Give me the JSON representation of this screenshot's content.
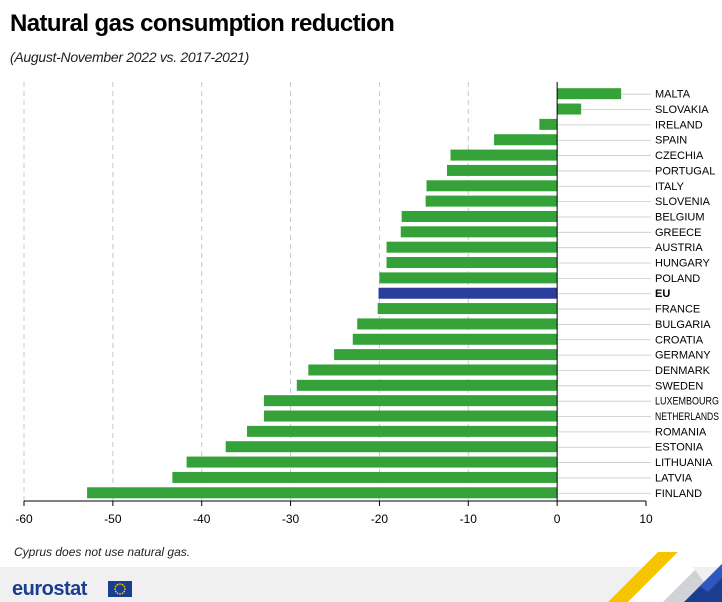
{
  "header": {
    "title": "Natural gas consumption reduction",
    "subtitle": "(August-November 2022 vs. 2017-2021)"
  },
  "note": "Cyprus does not use natural gas.",
  "footer": {
    "brand": "eurostat"
  },
  "colors": {
    "bar": "#34a238",
    "highlight": "#2a3c9c",
    "grid": "#c8c8c8",
    "axis": "#000000"
  },
  "chart_data": {
    "type": "bar",
    "orientation": "horizontal",
    "title": "Natural gas consumption reduction",
    "subtitle": "(August-November 2022 vs. 2017-2021)",
    "xlabel": "",
    "ylabel": "",
    "xlim": [
      -60,
      10
    ],
    "xticks": [
      -60,
      -50,
      -40,
      -30,
      -20,
      -10,
      0,
      10
    ],
    "highlight": "EU",
    "grid": "vertical dashed",
    "categories": [
      "MALTA",
      "SLOVAKIA",
      "IRELAND",
      "SPAIN",
      "CZECHIA",
      "PORTUGAL",
      "ITALY",
      "SLOVENIA",
      "BELGIUM",
      "GREECE",
      "AUSTRIA",
      "HUNGARY",
      "POLAND",
      "EU",
      "FRANCE",
      "BULGARIA",
      "CROATIA",
      "GERMANY",
      "DENMARK",
      "SWEDEN",
      "LUXEMBOURG",
      "NETHERLANDS",
      "ROMANIA",
      "ESTONIA",
      "LITHUANIA",
      "LATVIA",
      "FINLAND"
    ],
    "values": [
      7.2,
      2.7,
      -2.0,
      -7.1,
      -12.0,
      -12.4,
      -14.7,
      -14.8,
      -17.5,
      -17.6,
      -19.2,
      -19.2,
      -20.0,
      -20.1,
      -20.2,
      -22.5,
      -23.0,
      -25.1,
      -28.0,
      -29.3,
      -33.0,
      -33.0,
      -34.9,
      -37.3,
      -41.7,
      -43.3,
      -52.9
    ]
  }
}
